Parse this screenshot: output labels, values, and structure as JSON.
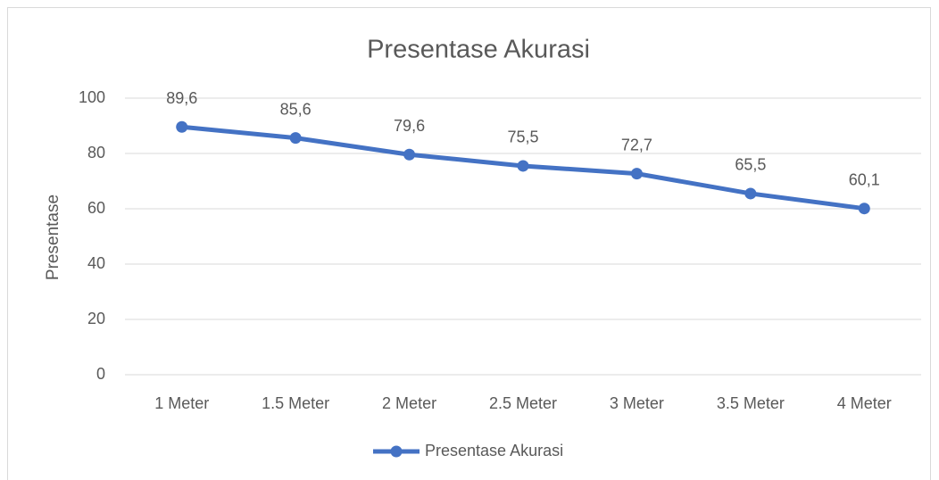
{
  "chart_data": {
    "type": "line",
    "title": "Presentase Akurasi",
    "y_label": "Presentase",
    "categories": [
      "1 Meter",
      "1.5 Meter",
      "2 Meter",
      "2.5 Meter",
      "3 Meter",
      "3.5 Meter",
      "4 Meter"
    ],
    "series": [
      {
        "name": "Presentase Akurasi",
        "color": "#4472c4",
        "values": [
          89.6,
          85.6,
          79.6,
          75.5,
          72.7,
          65.5,
          60.1
        ],
        "value_labels": [
          "89,6",
          "85,6",
          "79,6",
          "75,5",
          "72,7",
          "65,5",
          "60,1"
        ]
      }
    ],
    "ylim": [
      0,
      100
    ],
    "yticks": [
      0,
      20,
      40,
      60,
      80,
      100
    ],
    "grid": true,
    "legend": "bottom"
  }
}
